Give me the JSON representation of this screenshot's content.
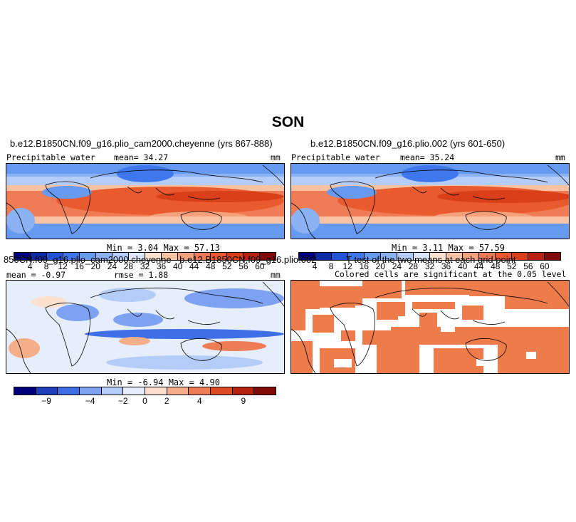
{
  "page": {
    "title": "SON"
  },
  "panels": [
    {
      "id": "p1",
      "title": "b.e12.B1850CN.f09_g16.plio_cam2000.cheyenne (yrs 867-888)",
      "variable": "Precipitable water",
      "mean_text": "mean=  34.27",
      "units": "mm",
      "minmax_text": "Min =    3.04  Max =   57.13"
    },
    {
      "id": "p2",
      "title": "b.e12.B1850CN.f09_g16.plio.002 (yrs 601-650)",
      "variable": "Precipitable water",
      "mean_text": "mean=  35.24",
      "units": "mm",
      "minmax_text": "Min =    3.11  Max =   57.59"
    },
    {
      "id": "p3",
      "title": "850CN.f09_g16.plio_cam2000.cheyenne - b.e12.B1850CN.f09_g16.plio.002",
      "mean_text": "mean =  -0.97",
      "rmse_text": "rmse =   1.88",
      "units": "mm",
      "minmax_text": "Min =   -6.94  Max =    4.90"
    },
    {
      "id": "p4",
      "title": "T-test of the two means at each grid point",
      "subtitle": "Colored cells are significant at the 0.05 level"
    }
  ],
  "chart_data": [
    {
      "type": "heatmap",
      "title": "b.e12.B1850CN.f09_g16.plio_cam2000.cheyenne (yrs 867-888)",
      "variable": "Precipitable water",
      "units": "mm",
      "mean": 34.27,
      "min": 3.04,
      "max": 57.13,
      "colorbar_levels": [
        4,
        8,
        12,
        16,
        20,
        24,
        28,
        32,
        36,
        40,
        44,
        48,
        52,
        56,
        60
      ]
    },
    {
      "type": "heatmap",
      "title": "b.e12.B1850CN.f09_g16.plio.002 (yrs 601-650)",
      "variable": "Precipitable water",
      "units": "mm",
      "mean": 35.24,
      "min": 3.11,
      "max": 57.59,
      "colorbar_levels": [
        4,
        8,
        12,
        16,
        20,
        24,
        28,
        32,
        36,
        40,
        44,
        48,
        52,
        56,
        60
      ]
    },
    {
      "type": "heatmap",
      "title": "850CN.f09_g16.plio_cam2000.cheyenne - b.e12.B1850CN.f09_g16.plio.002",
      "units": "mm",
      "mean": -0.97,
      "rmse": 1.88,
      "min": -6.94,
      "max": 4.9,
      "colorbar_labels": [
        "-9",
        "-4",
        "-2",
        "0",
        "2",
        "4",
        "9"
      ]
    },
    {
      "type": "heatmap",
      "title": "T-test of the two means at each grid point",
      "subtitle": "Colored cells are significant at the 0.05 level",
      "significance_level": 0.05
    }
  ],
  "colors": {
    "seq": [
      "#00007d",
      "#0d2ba5",
      "#1f55d6",
      "#3f78ee",
      "#6699f0",
      "#8ab2f5",
      "#b4cdf8",
      "#dce6fa",
      "#fbe0cd",
      "#f8c3a3",
      "#f5a27c",
      "#f07c55",
      "#e95a2f",
      "#d9401a",
      "#b72512",
      "#820a06"
    ],
    "div": [
      "#00007d",
      "#1f3fbd",
      "#3f6fe6",
      "#7da2f2",
      "#b4cdf8",
      "#e6eefc",
      "#fbe0cd",
      "#f5ae8a",
      "#ee7d55",
      "#de4a23",
      "#b7220f",
      "#820a06"
    ],
    "sig": "#ee7b4a"
  }
}
